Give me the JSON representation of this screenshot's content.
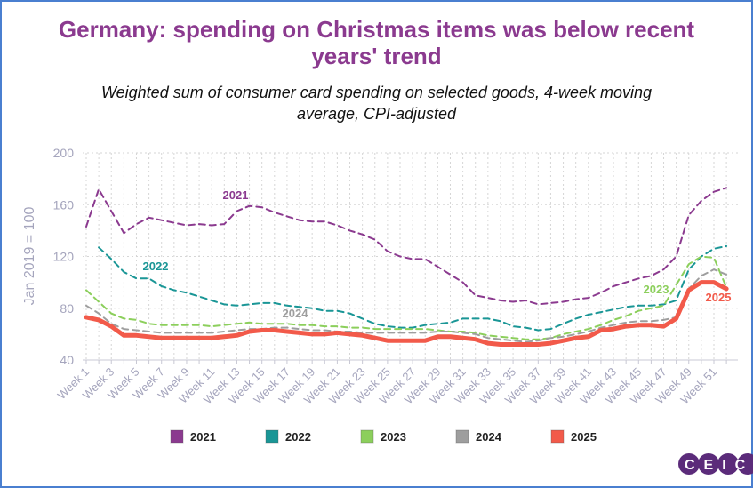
{
  "chart_data": {
    "type": "line",
    "title": "Germany: spending on Christmas items was below recent years' trend",
    "subtitle": "Weighted sum of consumer card spending on selected goods, 4-week moving average, CPI-adjusted",
    "y_label": "Jan 2019 = 100",
    "logo": "CEIC",
    "categories": [
      "Week 1",
      null,
      "Week 3",
      null,
      "Week 5",
      null,
      "Week 7",
      null,
      "Week 9",
      null,
      "Week 11",
      null,
      "Week 13",
      null,
      "Week 15",
      null,
      "Week 17",
      null,
      "Week 19",
      null,
      "Week 21",
      null,
      "Week 23",
      null,
      "Week 25",
      null,
      "Week 27",
      null,
      "Week 29",
      null,
      "Week 31",
      null,
      "Week 33",
      null,
      "Week 35",
      null,
      "Week 37",
      null,
      "Week 39",
      null,
      "Week 41",
      null,
      "Week 43",
      null,
      "Week 45",
      null,
      "Week 47",
      null,
      "Week 49",
      null,
      "Week 51",
      null
    ],
    "ylim": [
      40,
      200
    ],
    "yticks": [
      40,
      80,
      120,
      160,
      200
    ],
    "grid": true,
    "legend": "bottom",
    "series": [
      {
        "name": "2021",
        "color": "#8b3a8f",
        "style": "dashed",
        "values": [
          143,
          172,
          155,
          138,
          145,
          150,
          148,
          146,
          144,
          145,
          144,
          145,
          155,
          159,
          158,
          154,
          151,
          148,
          147,
          147,
          144,
          140,
          137,
          133,
          124,
          120,
          118,
          118,
          112,
          106,
          100,
          90,
          88,
          86,
          85,
          86,
          83,
          84,
          85,
          87,
          88,
          92,
          97,
          100,
          103,
          105,
          110,
          120,
          152,
          163,
          170,
          173
        ]
      },
      {
        "name": "2022",
        "color": "#1a9696",
        "style": "dashed",
        "values": [
          null,
          127,
          118,
          108,
          103,
          103,
          97,
          94,
          92,
          89,
          86,
          83,
          82,
          83,
          84,
          84,
          82,
          81,
          80,
          78,
          78,
          76,
          72,
          68,
          66,
          65,
          65,
          67,
          68,
          69,
          72,
          72,
          72,
          70,
          66,
          65,
          63,
          64,
          68,
          72,
          75,
          77,
          79,
          81,
          82,
          82,
          83,
          86,
          110,
          120,
          126,
          128
        ]
      },
      {
        "name": "2023",
        "color": "#8ccf5c",
        "style": "dashed",
        "values": [
          94,
          85,
          76,
          72,
          71,
          68,
          67,
          67,
          67,
          67,
          66,
          67,
          68,
          69,
          68,
          68,
          68,
          67,
          67,
          66,
          66,
          65,
          65,
          64,
          64,
          64,
          64,
          64,
          63,
          62,
          62,
          61,
          59,
          58,
          57,
          56,
          56,
          57,
          60,
          62,
          64,
          67,
          71,
          74,
          78,
          80,
          82,
          98,
          114,
          120,
          119,
          96
        ]
      },
      {
        "name": "2024",
        "color": "#9e9e9e",
        "style": "dashed",
        "values": [
          82,
          76,
          68,
          64,
          63,
          62,
          61,
          61,
          61,
          61,
          61,
          62,
          63,
          64,
          64,
          65,
          65,
          64,
          63,
          63,
          62,
          62,
          61,
          61,
          61,
          61,
          61,
          61,
          62,
          62,
          61,
          60,
          57,
          56,
          55,
          54,
          55,
          57,
          58,
          60,
          62,
          65,
          67,
          69,
          70,
          70,
          71,
          73,
          95,
          105,
          110,
          106
        ]
      },
      {
        "name": "2025",
        "color": "#f25a4a",
        "style": "solid",
        "values": [
          73,
          71,
          66,
          59,
          59,
          58,
          57,
          57,
          57,
          57,
          57,
          58,
          59,
          62,
          63,
          63,
          62,
          61,
          60,
          60,
          61,
          60,
          59,
          57,
          55,
          55,
          55,
          55,
          58,
          58,
          57,
          56,
          53,
          52,
          52,
          52,
          52,
          53,
          55,
          57,
          58,
          63,
          64,
          66,
          67,
          67,
          66,
          72,
          94,
          100,
          100,
          95
        ]
      }
    ]
  }
}
